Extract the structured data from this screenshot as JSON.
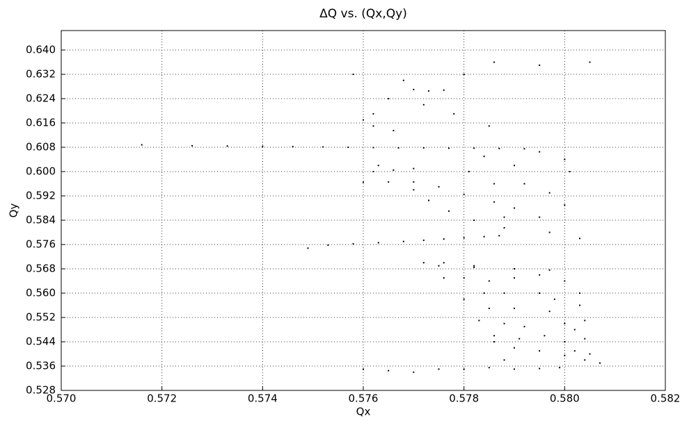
{
  "chart_data": {
    "type": "scatter",
    "title": "ΔQ vs. (Qx,Qy)",
    "x_label": "Qx",
    "y_label": "Qy",
    "color": "#000000",
    "grid": true,
    "xlim": [
      0.57,
      0.582
    ],
    "xticks": [
      {
        "value": 0.57,
        "label": "0.570"
      },
      0.572,
      0.574,
      0.576,
      0.578,
      {
        "value": 0.58,
        "label": "0.580"
      },
      0.582
    ],
    "ylim": [
      0.528,
      0.6464
    ],
    "yticks": [
      0.528,
      0.536,
      0.544,
      0.552,
      {
        "value": 0.56,
        "label": "0.560"
      },
      0.568,
      0.576,
      0.584,
      0.592,
      {
        "value": 0.6,
        "label": "0.600"
      },
      0.608,
      0.616,
      0.624,
      0.632,
      {
        "value": 0.64,
        "label": "0.640"
      }
    ],
    "x": [
      0.5716,
      0.5726,
      0.5733,
      0.574,
      0.5746,
      0.5752,
      0.5757,
      0.5762,
      0.5767,
      0.5772,
      0.5777,
      0.5782,
      0.5787,
      0.5792,
      0.576,
      0.5765,
      0.577,
      0.5749,
      0.5753,
      0.5758,
      0.5763,
      0.5768,
      0.5772,
      0.5776,
      0.578,
      0.5784,
      0.5787,
      0.5775,
      0.5782,
      0.579,
      0.5797,
      0.5762,
      0.576,
      0.5762,
      0.5766,
      0.5763,
      0.5766,
      0.577,
      0.5762,
      0.577,
      0.5773,
      0.5776,
      0.5768,
      0.578,
      0.5765,
      0.5772,
      0.5778,
      0.5785,
      0.577,
      0.5773,
      0.5777,
      0.5782,
      0.5788,
      0.5775,
      0.578,
      0.5786,
      0.579,
      0.5784,
      0.579,
      0.5795,
      0.5792,
      0.5797,
      0.58,
      0.5788,
      0.5795,
      0.5801,
      0.5781,
      0.5786,
      0.5797,
      0.5803,
      0.58,
      0.5772,
      0.5776,
      0.578,
      0.5783,
      0.5786,
      0.579,
      0.5795,
      0.58,
      0.5804,
      0.5807,
      0.5805,
      0.5804,
      0.5804,
      0.5803,
      0.5803,
      0.58,
      0.5795,
      0.579,
      0.5785,
      0.578,
      0.5788,
      0.5795,
      0.579,
      0.5797,
      0.58,
      0.5792,
      0.5788,
      0.5785,
      0.5796,
      0.58,
      0.5791,
      0.5802,
      0.5784,
      0.5776,
      0.5782,
      0.5798,
      0.5802,
      0.5786,
      0.576,
      0.5765,
      0.577,
      0.5775,
      0.578,
      0.5785,
      0.579,
      0.5795,
      0.5799,
      0.5788,
      0.5786,
      0.5795,
      0.5805,
      0.5758
    ],
    "values": [
      0.6088,
      0.6085,
      0.6084,
      0.6083,
      0.6082,
      0.6081,
      0.608,
      0.6079,
      0.6078,
      0.6078,
      0.6077,
      0.6077,
      0.6076,
      0.6075,
      0.5965,
      0.5966,
      0.5966,
      0.5748,
      0.5758,
      0.5762,
      0.5766,
      0.577,
      0.5774,
      0.5778,
      0.5782,
      0.5786,
      0.5789,
      0.569,
      0.5685,
      0.568,
      0.5676,
      0.619,
      0.617,
      0.615,
      0.6135,
      0.602,
      0.6005,
      0.601,
      0.6,
      0.627,
      0.6265,
      0.6268,
      0.63,
      0.632,
      0.624,
      0.622,
      0.619,
      0.615,
      0.594,
      0.5905,
      0.587,
      0.584,
      0.5815,
      0.595,
      0.5925,
      0.59,
      0.588,
      0.605,
      0.602,
      0.6065,
      0.596,
      0.593,
      0.589,
      0.585,
      0.585,
      0.6,
      0.6,
      0.596,
      0.58,
      0.578,
      0.604,
      0.57,
      0.565,
      0.558,
      0.551,
      0.544,
      0.542,
      0.541,
      0.5395,
      0.538,
      0.537,
      0.54,
      0.545,
      0.551,
      0.556,
      0.56,
      0.564,
      0.566,
      0.565,
      0.564,
      0.565,
      0.56,
      0.56,
      0.555,
      0.554,
      0.55,
      0.549,
      0.55,
      0.555,
      0.546,
      0.544,
      0.545,
      0.541,
      0.56,
      0.57,
      0.569,
      0.558,
      0.548,
      0.546,
      0.535,
      0.5345,
      0.534,
      0.535,
      0.535,
      0.5355,
      0.535,
      0.5352,
      0.5355,
      0.538,
      0.636,
      0.635,
      0.636,
      0.632
    ]
  }
}
